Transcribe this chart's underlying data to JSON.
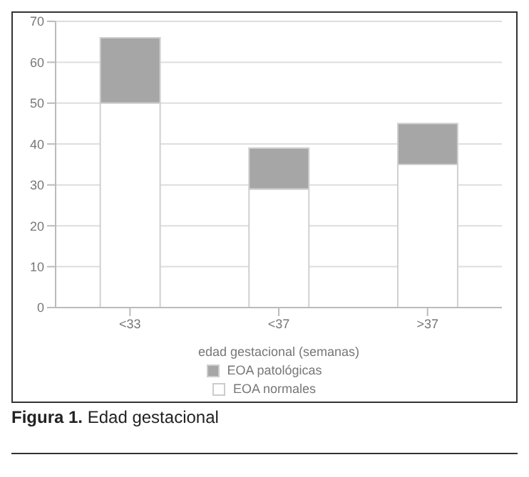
{
  "chart_data": {
    "type": "bar",
    "stacked": true,
    "xlabel": "edad gestacional (semanas)",
    "categories": [
      "<33",
      "<37",
      ">37"
    ],
    "series": [
      {
        "name": "EOA normales",
        "color": "#ffffff",
        "values": [
          50,
          29,
          35
        ]
      },
      {
        "name": "EOA patológicas",
        "color": "#a6a6a6",
        "values": [
          16,
          10,
          10
        ]
      }
    ],
    "ylim": [
      0,
      70
    ],
    "yticks": [
      0,
      10,
      20,
      30,
      40,
      50,
      60,
      70
    ],
    "grid": "y",
    "legend": "bottom",
    "annotations": [
      "Figura 1. Edad gestacional"
    ]
  }
}
